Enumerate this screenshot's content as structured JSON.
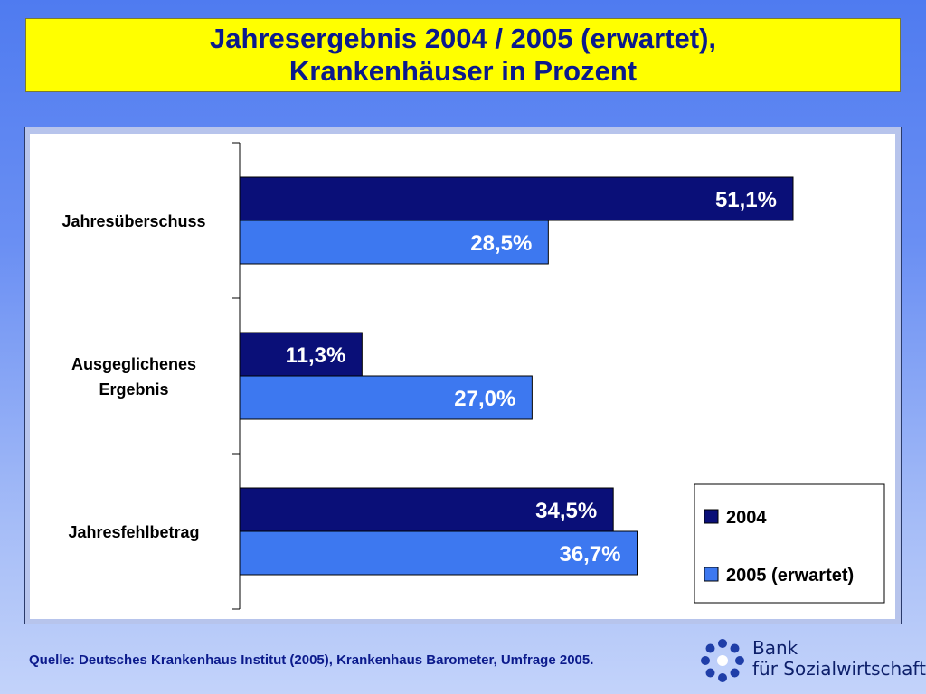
{
  "title": {
    "line1": "Jahresergebnis 2004 / 2005 (erwartet),",
    "line2": "Krankenhäuser in Prozent"
  },
  "chart_data": {
    "type": "bar",
    "orientation": "horizontal",
    "categories": [
      "Jahresüberschuss",
      "Ausgeglichenes Ergebnis",
      "Jahresfehlbetrag"
    ],
    "category_label_lines": [
      [
        "Jahresüberschuss"
      ],
      [
        "Ausgeglichenes",
        "Ergebnis"
      ],
      [
        "Jahresfehlbetrag"
      ]
    ],
    "series": [
      {
        "name": "2004",
        "values": [
          51.1,
          11.3,
          34.5
        ],
        "labels": [
          "51,1%",
          "11,3%",
          "34,5%"
        ],
        "color": "#0a0f78"
      },
      {
        "name": "2005 (erwartet)",
        "values": [
          28.5,
          27.0,
          36.7
        ],
        "labels": [
          "28,5%",
          "27,0%",
          "36,7%"
        ],
        "color": "#3d78f0"
      }
    ],
    "xlim": [
      0,
      60
    ],
    "grid": false,
    "legend_position": "bottom-right"
  },
  "source": "Quelle: Deutsches Krankenhaus Institut (2005), Krankenhaus Barometer, Umfrage 2005.",
  "logo": {
    "line1": "Bank",
    "line2": "für Sozialwirtschaft"
  }
}
